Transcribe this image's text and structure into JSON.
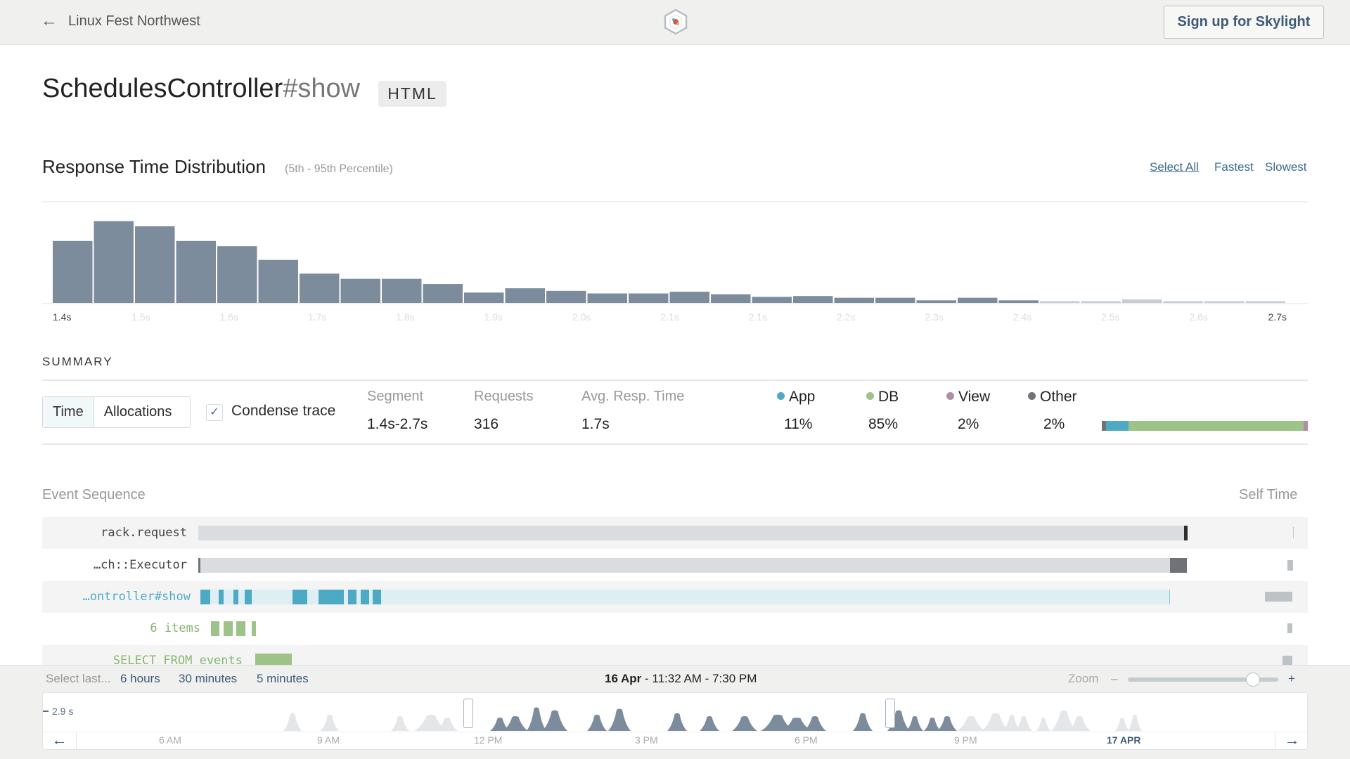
{
  "header": {
    "back_icon": "arrow-left-icon",
    "project": "Linux Fest Northwest",
    "logo": "skylight-hexagon-logo",
    "signup": "Sign up for Skylight"
  },
  "page": {
    "title_main": "SchedulesController",
    "title_action": "#show",
    "badge": "HTML"
  },
  "distribution": {
    "title": "Response Time Distribution",
    "subtitle": "(5th - 95th Percentile)",
    "links": [
      "Select All",
      "Fastest",
      "Slowest"
    ]
  },
  "chart_data": {
    "type": "bar",
    "title": "Response Time Distribution",
    "tick_labels": [
      "1.4s",
      "1.5s",
      "1.6s",
      "1.7s",
      "1.8s",
      "1.9s",
      "2.0s",
      "2.1s",
      "2.1s",
      "2.2s",
      "2.3s",
      "2.4s",
      "2.5s",
      "2.6s",
      "2.7s"
    ],
    "values": [
      72,
      95,
      89,
      72,
      66,
      50,
      34,
      28,
      28,
      22,
      12,
      17,
      14,
      11,
      11,
      13,
      10,
      7,
      8,
      6,
      6,
      3,
      6,
      3,
      2,
      2,
      4,
      2,
      2,
      2
    ],
    "selected_count": 24,
    "colors": {
      "selected": "#7d8c9c",
      "unselected": "#c5ccd3"
    },
    "grid": false
  },
  "summary": {
    "heading": "SUMMARY",
    "tabs": [
      "Time",
      "Allocations"
    ],
    "condense": "Condense trace",
    "condense_checked": true,
    "stats": [
      {
        "label": "Segment",
        "value": "1.4s-2.7s"
      },
      {
        "label": "Requests",
        "value": "316"
      },
      {
        "label": "Avg. Resp. Time",
        "value": "1.7s"
      }
    ],
    "breakdown": [
      {
        "label": "App",
        "value": "11%",
        "pct": 11,
        "color": "#4eaac4"
      },
      {
        "label": "DB",
        "value": "85%",
        "pct": 85,
        "color": "#9dc388"
      },
      {
        "label": "View",
        "value": "2%",
        "pct": 2,
        "color": "#b08ea6"
      },
      {
        "label": "Other",
        "value": "2%",
        "pct": 2,
        "color": "#6f7378"
      }
    ]
  },
  "events": {
    "title": "Event Sequence",
    "self_time": "Self Time",
    "rows": [
      {
        "label": "rack.request"
      },
      {
        "label": "…ch::Executor"
      },
      {
        "label": "…ontroller#show"
      },
      {
        "label": "6 items"
      },
      {
        "label": "SELECT FROM events"
      }
    ]
  },
  "timeline": {
    "select_last": "Select last...",
    "ranges": [
      "6 hours",
      "30 minutes",
      "5 minutes"
    ],
    "date": "16 Apr",
    "range": " - 11:32 AM - 7:30 PM",
    "zoom": "Zoom",
    "zoom_minus": "–",
    "zoom_plus": "+",
    "zoom_level": 0.83,
    "ymax": "2.9 s",
    "ticks": [
      "6 AM",
      "9 AM",
      "12 PM",
      "3 PM",
      "6 PM",
      "9 PM",
      "17 APR"
    ],
    "prev_icon": "arrow-left-icon",
    "next_icon": "arrow-right-icon"
  }
}
